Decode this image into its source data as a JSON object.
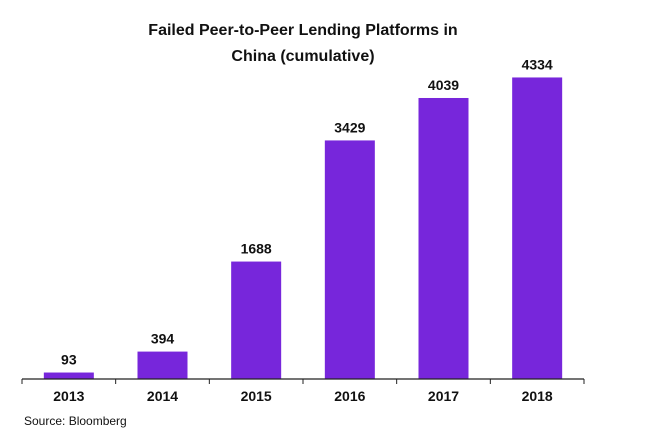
{
  "chart_data": {
    "type": "bar",
    "title_line1": "Failed Peer-to-Peer Lending Platforms in",
    "title_line2": "China (cumulative)",
    "categories": [
      "2013",
      "2014",
      "2015",
      "2016",
      "2017",
      "2018"
    ],
    "values": [
      93,
      394,
      1688,
      3429,
      4039,
      4334
    ],
    "data_labels": [
      "93",
      "394",
      "1688",
      "3429",
      "4039",
      "4334"
    ],
    "bar_color": "#7726DB",
    "xlabel": "",
    "ylabel": "",
    "ylim": [
      0,
      4700
    ],
    "grid": false,
    "legend": "none"
  },
  "footer": {
    "source": "Source: Bloomberg"
  }
}
